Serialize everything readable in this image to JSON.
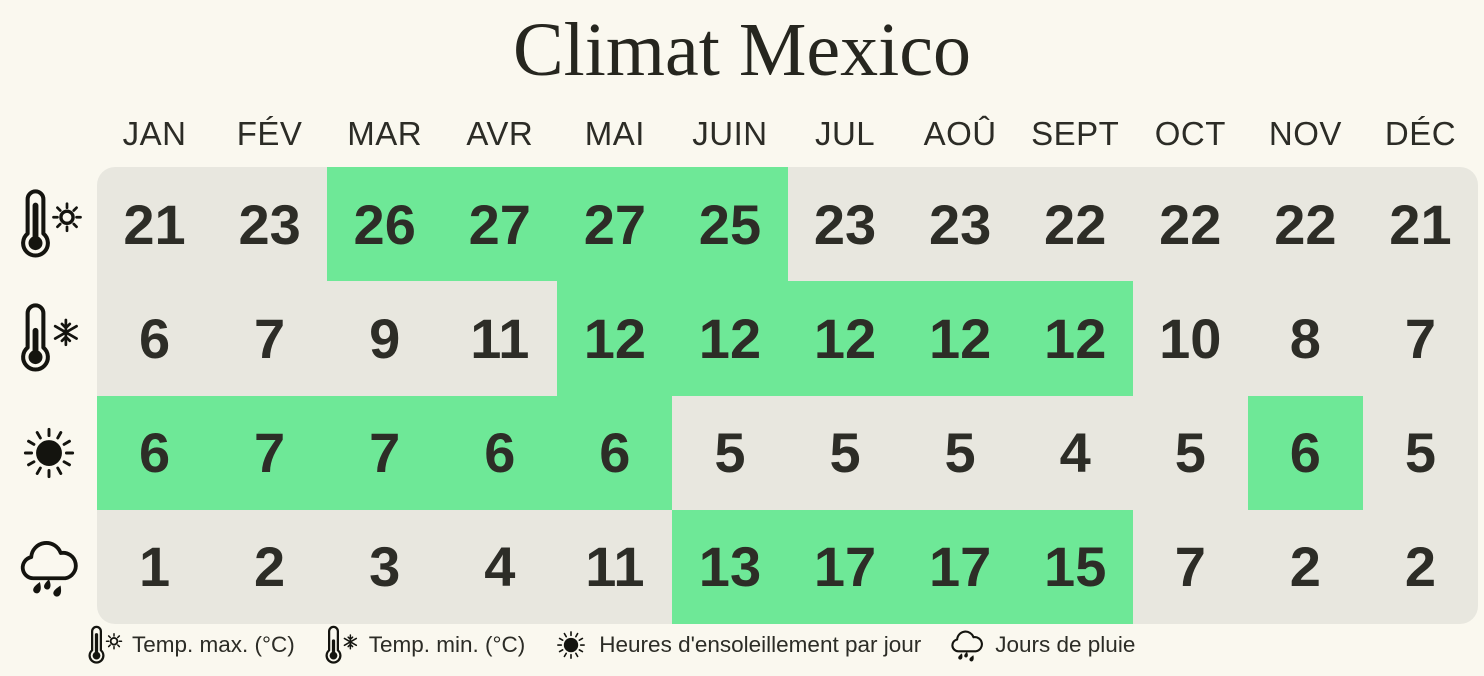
{
  "title": "Climat Mexico",
  "colors": {
    "background": "#faf8ef",
    "cell": "#e8e7df",
    "highlight": "#6ee897",
    "text": "#2d2d27"
  },
  "chart_data": {
    "type": "table",
    "title": "Climat Mexico",
    "categories": [
      "JAN",
      "FÉV",
      "MAR",
      "AVR",
      "MAI",
      "JUIN",
      "JUL",
      "AOÛ",
      "SEPT",
      "OCT",
      "NOV",
      "DÉC"
    ],
    "series": [
      {
        "id": "temp-max",
        "name": "Temp. max. (°C)",
        "icon": "thermometer-sun-icon",
        "values": [
          21,
          23,
          26,
          27,
          27,
          25,
          23,
          23,
          22,
          22,
          22,
          21
        ],
        "highlighted": [
          false,
          false,
          true,
          true,
          true,
          true,
          false,
          false,
          false,
          false,
          false,
          false
        ]
      },
      {
        "id": "temp-min",
        "name": "Temp. min. (°C)",
        "icon": "thermometer-snowflake-icon",
        "values": [
          6,
          7,
          9,
          11,
          12,
          12,
          12,
          12,
          12,
          10,
          8,
          7
        ],
        "highlighted": [
          false,
          false,
          false,
          false,
          true,
          true,
          true,
          true,
          true,
          false,
          false,
          false
        ]
      },
      {
        "id": "sunshine-hours",
        "name": "Heures d'ensoleillement par jour",
        "icon": "sun-icon",
        "values": [
          6,
          7,
          7,
          6,
          6,
          5,
          5,
          5,
          4,
          5,
          6,
          5
        ],
        "highlighted": [
          true,
          true,
          true,
          true,
          true,
          false,
          false,
          false,
          false,
          false,
          true,
          false
        ]
      },
      {
        "id": "rain-days",
        "name": "Jours de pluie",
        "icon": "rain-cloud-icon",
        "values": [
          1,
          2,
          3,
          4,
          11,
          13,
          17,
          17,
          15,
          7,
          2,
          2
        ],
        "highlighted": [
          false,
          false,
          false,
          false,
          false,
          true,
          true,
          true,
          true,
          false,
          false,
          false
        ]
      }
    ],
    "highlight_cells_color": "#6ee897",
    "legend_position": "bottom"
  },
  "legend": [
    {
      "icon": "thermometer-sun-icon",
      "label": "Temp. max. (°C)"
    },
    {
      "icon": "thermometer-snowflake-icon",
      "label": "Temp. min. (°C)"
    },
    {
      "icon": "sun-icon",
      "label": "Heures d'ensoleillement par jour"
    },
    {
      "icon": "rain-cloud-icon",
      "label": "Jours de pluie"
    }
  ]
}
